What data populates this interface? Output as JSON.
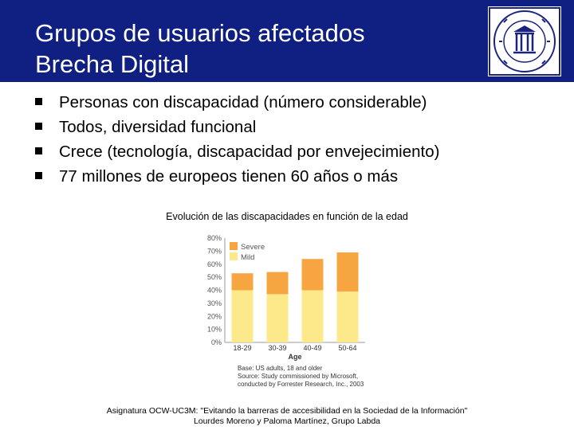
{
  "slide": {
    "title_line1": "Grupos de usuarios afectados",
    "title_line2": "Brecha Digital",
    "bullets": [
      "Personas con discapacidad (número considerable)",
      "Todos,  diversidad funcional",
      "Crece  (tecnología, discapacidad por envejecimiento)",
      "77 millones de europeos tienen 60 años o más"
    ],
    "figure_title": "Evolución de las discapacidades en función de la edad",
    "footer_line1": "Asignatura OCW-UC3M: \"Evitando la barreras de accesibilidad en la Sociedad de la Información\"",
    "footer_line2": "Lourdes Moreno y Paloma Martínez, Grupo Labda",
    "logo_icon": "university-seal-icon",
    "colors": {
      "header": "#0f1f82",
      "severe": "#f7a541",
      "mild": "#fde88a"
    }
  },
  "chart_data": {
    "type": "bar",
    "stacked": true,
    "categories": [
      "18-29",
      "30-39",
      "40-49",
      "50-64"
    ],
    "series": [
      {
        "name": "Mild",
        "values": [
          40,
          37,
          40,
          39
        ]
      },
      {
        "name": "Severe",
        "values": [
          13,
          17,
          24,
          30
        ]
      }
    ],
    "xlabel": "Age",
    "ylabel": "",
    "ylim": [
      0,
      80
    ],
    "yticks": [
      "0%",
      "10%",
      "20%",
      "30%",
      "40%",
      "50%",
      "60%",
      "70%",
      "80%"
    ],
    "legend": "top-left",
    "source_lines": [
      "Base: US adults, 18 and older",
      "Source: Study commissioned by Microsoft,",
      "conducted by Forrester Research, Inc., 2003"
    ]
  }
}
